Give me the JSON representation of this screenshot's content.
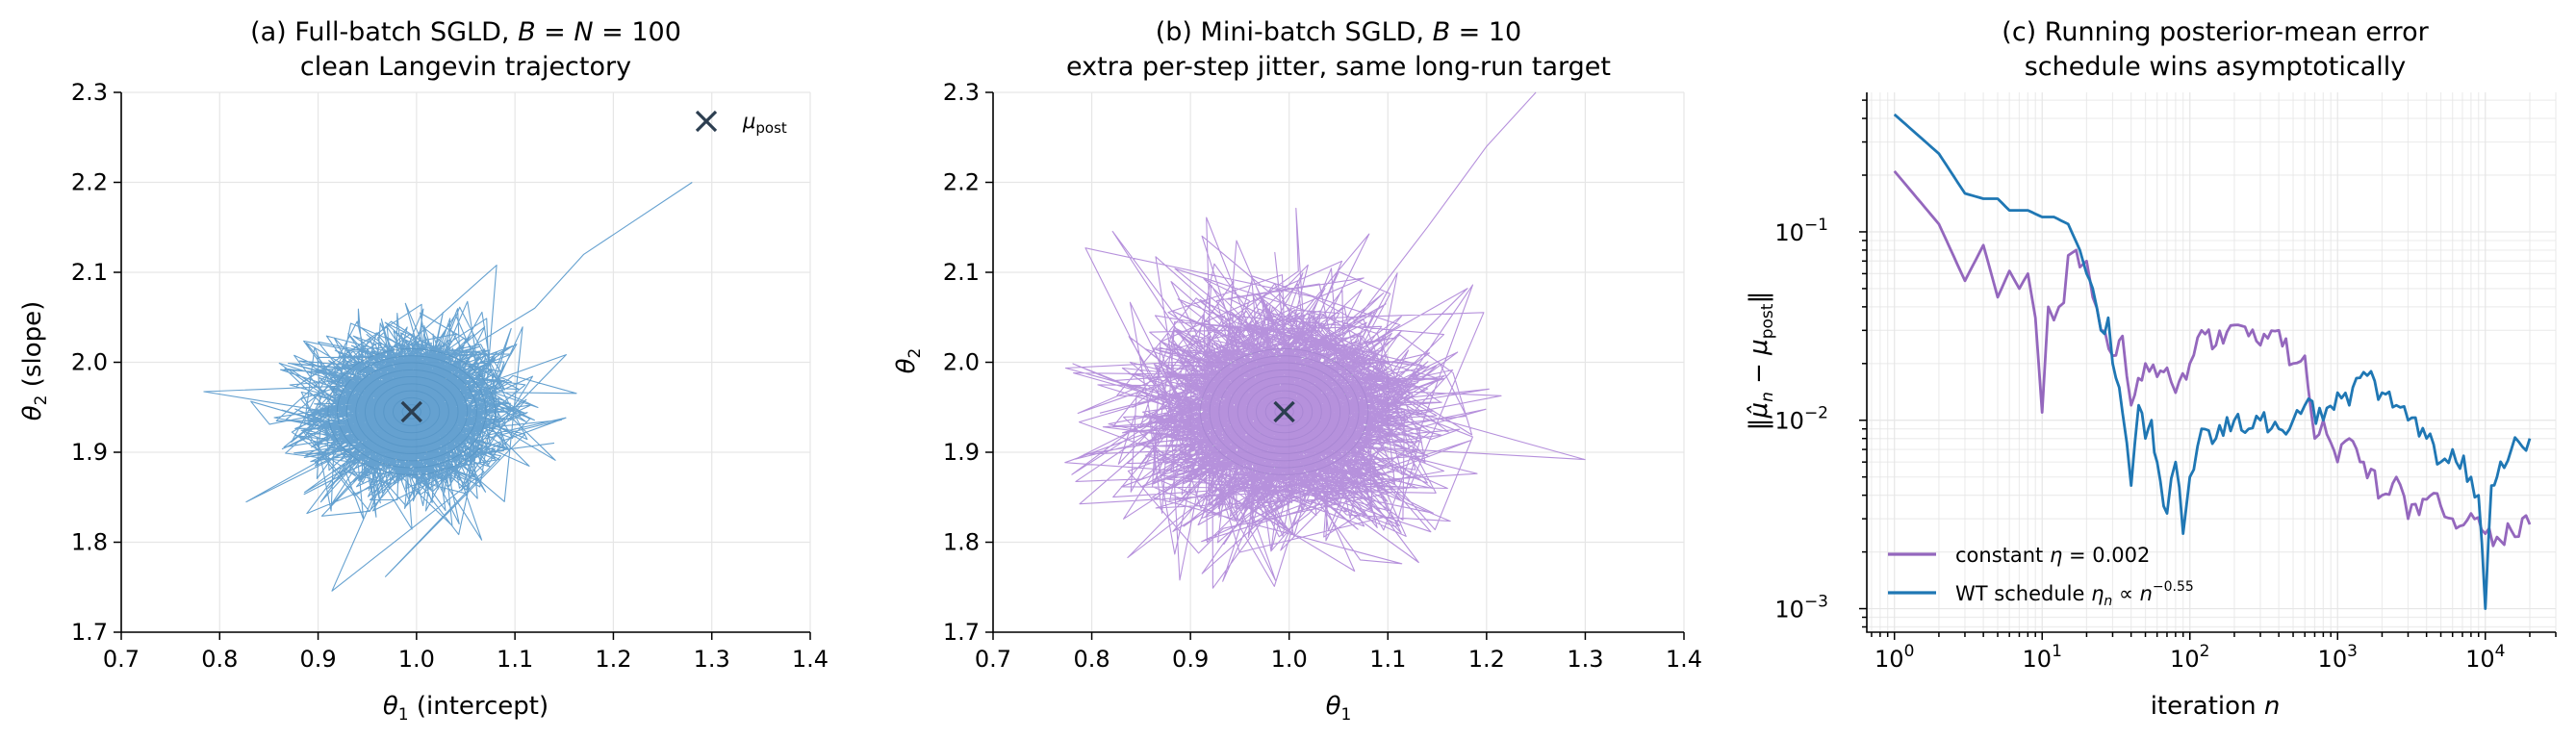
{
  "chart_data": [
    {
      "type": "scatter",
      "panel": "a",
      "title_line1": "(a) Full-batch SGLD, B = N = 100",
      "title_line2": "clean Langevin trajectory",
      "xlabel": "θ₁ (intercept)",
      "ylabel": "θ₂ (slope)",
      "xlim": [
        0.7,
        1.4
      ],
      "ylim": [
        1.7,
        2.3
      ],
      "xticks": [
        "0.7",
        "0.8",
        "0.9",
        "1.0",
        "1.1",
        "1.2",
        "1.3",
        "1.4"
      ],
      "yticks": [
        "1.7",
        "1.8",
        "1.9",
        "2.0",
        "2.1",
        "2.2",
        "2.3"
      ],
      "grid": true,
      "trace_color": "#4a90c8",
      "contour_color": "#5a7a8a",
      "posterior_mean": {
        "x": 0.995,
        "y": 1.945
      },
      "spread": {
        "sx": 0.055,
        "sy": 0.05
      },
      "path_tail": [
        [
          1.0,
          1.95
        ],
        [
          1.06,
          2.02
        ],
        [
          1.12,
          2.06
        ],
        [
          1.17,
          2.12
        ],
        [
          1.28,
          2.2
        ]
      ],
      "legend": {
        "label": "μ_post",
        "position": "top-right"
      }
    },
    {
      "type": "scatter",
      "panel": "b",
      "title_line1": "(b) Mini-batch SGLD, B = 10",
      "title_line2": "extra per-step jitter, same long-run target",
      "xlabel": "θ₁",
      "ylabel": "θ₂",
      "xlim": [
        0.7,
        1.4
      ],
      "ylim": [
        1.7,
        2.3
      ],
      "xticks": [
        "0.7",
        "0.8",
        "0.9",
        "1.0",
        "1.1",
        "1.2",
        "1.3",
        "1.4"
      ],
      "yticks": [
        "1.7",
        "1.8",
        "1.9",
        "2.0",
        "2.1",
        "2.2",
        "2.3"
      ],
      "grid": true,
      "trace_color": "#a97ed6",
      "contour_color": "#5a7a8a",
      "posterior_mean": {
        "x": 0.995,
        "y": 1.945
      },
      "spread": {
        "sx": 0.085,
        "sy": 0.07
      },
      "path_tail": [
        [
          1.0,
          1.95
        ],
        [
          1.07,
          2.05
        ],
        [
          1.14,
          2.15
        ],
        [
          1.2,
          2.24
        ],
        [
          1.25,
          2.3
        ]
      ]
    },
    {
      "type": "line",
      "panel": "c",
      "title_line1": "(c) Running posterior-mean error",
      "title_line2": "schedule wins asymptotically",
      "xlabel": "iteration n",
      "ylabel": "‖μ̂ₙ − μ_post‖",
      "xscale": "log",
      "yscale": "log",
      "xlim": [
        0.65,
        30000
      ],
      "ylim": [
        0.00075,
        0.55
      ],
      "xticks": [
        {
          "v": 1,
          "label": "10^0"
        },
        {
          "v": 10,
          "label": "10^1"
        },
        {
          "v": 100,
          "label": "10^2"
        },
        {
          "v": 1000,
          "label": "10^3"
        },
        {
          "v": 10000,
          "label": "10^4"
        }
      ],
      "yticks": [
        {
          "v": 0.001,
          "label": "10^-3"
        },
        {
          "v": 0.01,
          "label": "10^-2"
        },
        {
          "v": 0.1,
          "label": "10^-1"
        }
      ],
      "grid": true,
      "legend_position": "lower-left",
      "series": [
        {
          "name": "constant η = 0.002",
          "color": "#9467bd",
          "x": [
            1,
            2,
            3,
            4,
            5,
            6,
            7,
            8,
            9,
            10,
            11,
            12,
            13,
            14,
            15,
            17,
            18,
            20,
            22,
            25,
            30,
            35,
            40,
            50,
            60,
            70,
            80,
            100,
            120,
            150,
            200,
            250,
            300,
            400,
            500,
            600,
            700,
            800,
            1000,
            1200,
            1500,
            2000,
            2500,
            3000,
            4000,
            5000,
            6000,
            8000,
            10000,
            12000,
            15000,
            20000
          ],
          "y": [
            0.21,
            0.11,
            0.055,
            0.085,
            0.045,
            0.062,
            0.05,
            0.06,
            0.035,
            0.011,
            0.04,
            0.034,
            0.04,
            0.042,
            0.075,
            0.08,
            0.065,
            0.07,
            0.045,
            0.03,
            0.022,
            0.028,
            0.012,
            0.02,
            0.017,
            0.019,
            0.014,
            0.02,
            0.03,
            0.025,
            0.032,
            0.028,
            0.025,
            0.03,
            0.02,
            0.022,
            0.008,
            0.01,
            0.006,
            0.008,
            0.006,
            0.004,
            0.005,
            0.003,
            0.0038,
            0.0035,
            0.003,
            0.0032,
            0.0025,
            0.0024,
            0.0026,
            0.0028
          ]
        },
        {
          "name": "WT schedule ηₙ ∝ n^-0.55",
          "color": "#1f77b4",
          "x": [
            1,
            2,
            3,
            4,
            5,
            6,
            8,
            10,
            12,
            15,
            18,
            20,
            22,
            25,
            28,
            30,
            35,
            40,
            45,
            50,
            55,
            60,
            70,
            80,
            90,
            100,
            120,
            150,
            200,
            250,
            300,
            400,
            500,
            600,
            800,
            1000,
            1200,
            1500,
            2000,
            2500,
            3000,
            4000,
            5000,
            6000,
            8000,
            9000,
            10000,
            11000,
            12000,
            15000,
            20000
          ],
          "y": [
            0.42,
            0.26,
            0.16,
            0.15,
            0.15,
            0.13,
            0.13,
            0.12,
            0.12,
            0.11,
            0.08,
            0.06,
            0.05,
            0.03,
            0.035,
            0.02,
            0.011,
            0.0045,
            0.012,
            0.008,
            0.01,
            0.006,
            0.0032,
            0.006,
            0.0025,
            0.005,
            0.009,
            0.008,
            0.01,
            0.009,
            0.01,
            0.009,
            0.01,
            0.012,
            0.01,
            0.014,
            0.012,
            0.018,
            0.014,
            0.012,
            0.01,
            0.008,
            0.006,
            0.007,
            0.005,
            0.004,
            0.001,
            0.0045,
            0.005,
            0.007,
            0.008
          ]
        }
      ]
    }
  ]
}
